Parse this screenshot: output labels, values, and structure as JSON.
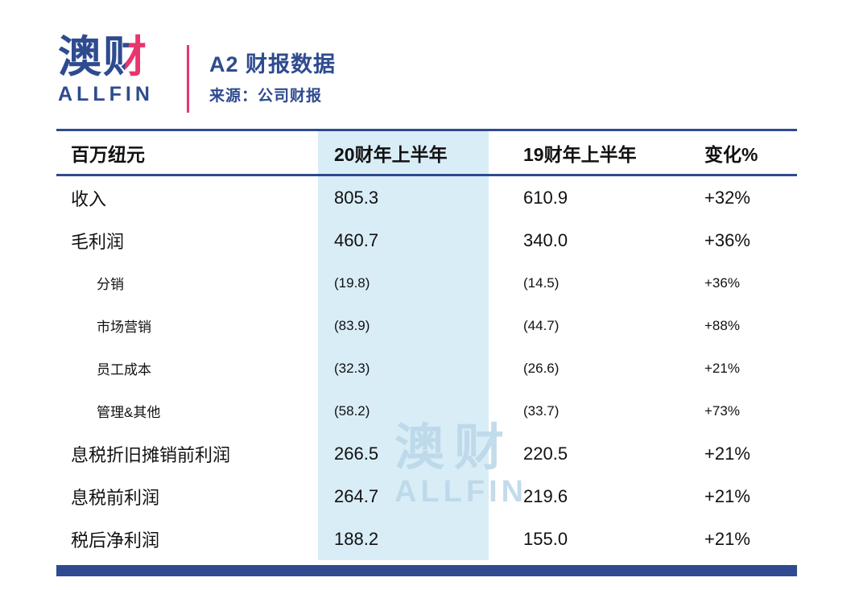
{
  "colors": {
    "navy": "#2e4b8f",
    "pink": "#e8356d",
    "highlight": "#d9edf7",
    "watermark": "#bcd9e9",
    "text": "#111111"
  },
  "brand": {
    "logo_cn_first": "澳",
    "logo_cn_second": "财",
    "logo_en": "ALLFIN"
  },
  "header": {
    "title": "A2 财报数据",
    "source": "来源：公司财报"
  },
  "watermark": {
    "cn": "澳财",
    "en": "ALLFIN"
  },
  "chart_data": {
    "type": "table",
    "title": "A2 财报数据",
    "source": "来源：公司财报",
    "columns": [
      "百万纽元",
      "20财年上半年",
      "19财年上半年",
      "变化%"
    ],
    "rows": [
      {
        "label": "收入",
        "indent": false,
        "values": [
          "805.3",
          "610.9",
          "+32%"
        ]
      },
      {
        "label": "毛利润",
        "indent": false,
        "values": [
          "460.7",
          "340.0",
          "+36%"
        ]
      },
      {
        "label": "分销",
        "indent": true,
        "values": [
          "(19.8)",
          "(14.5)",
          "+36%"
        ]
      },
      {
        "label": "市场营销",
        "indent": true,
        "values": [
          "(83.9)",
          "(44.7)",
          "+88%"
        ]
      },
      {
        "label": "员工成本",
        "indent": true,
        "values": [
          "(32.3)",
          "(26.6)",
          "+21%"
        ]
      },
      {
        "label": "管理&其他",
        "indent": true,
        "values": [
          "(58.2)",
          "(33.7)",
          "+73%"
        ]
      },
      {
        "label": "息税折旧摊销前利润",
        "indent": false,
        "values": [
          "266.5",
          "220.5",
          "+21%"
        ]
      },
      {
        "label": "息税前利润",
        "indent": false,
        "values": [
          "264.7",
          "219.6",
          "+21%"
        ]
      },
      {
        "label": "税后净利润",
        "indent": false,
        "values": [
          "188.2",
          "155.0",
          "+21%"
        ]
      }
    ]
  }
}
